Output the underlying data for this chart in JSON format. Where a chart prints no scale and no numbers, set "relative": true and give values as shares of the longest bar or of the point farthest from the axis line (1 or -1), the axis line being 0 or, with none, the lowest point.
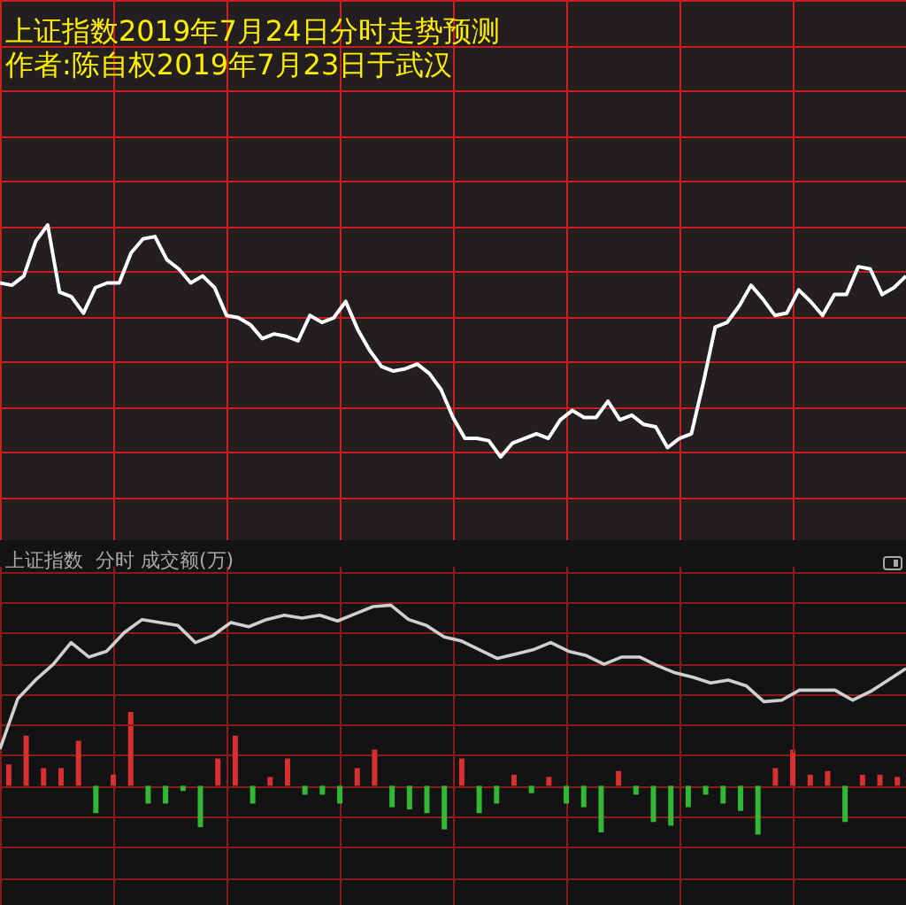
{
  "chart_data": [
    {
      "type": "line",
      "title": "上证指数2019年7月24日分时走势预测",
      "subtitle": "作者:陈自权2019年7月23日于武汉",
      "relative": true,
      "grid": true,
      "color": "#ffffff",
      "categories": [
        null,
        null,
        null,
        null,
        null,
        null,
        null,
        null,
        null,
        null,
        null,
        null,
        null,
        null,
        null,
        null,
        null,
        null,
        null,
        null,
        null,
        null,
        null,
        null,
        null,
        null,
        null,
        null,
        null,
        null,
        null,
        null,
        null,
        null,
        null,
        null,
        null,
        null,
        null,
        null,
        null,
        null,
        null,
        null,
        null,
        null,
        null,
        null,
        null,
        null,
        null,
        null,
        null,
        null,
        null,
        null,
        null,
        null,
        null,
        null,
        null,
        null,
        null,
        null,
        null,
        null,
        null,
        null,
        null,
        null,
        null,
        null,
        null,
        null,
        null,
        null,
        null
      ],
      "values": [
        0.75,
        0.74,
        0.78,
        0.93,
        1,
        0.71,
        0.69,
        0.62,
        0.73,
        0.75,
        0.75,
        0.88,
        0.94,
        0.95,
        0.85,
        0.81,
        0.75,
        0.78,
        0.73,
        0.61,
        0.6,
        0.57,
        0.51,
        0.53,
        0.52,
        0.5,
        0.61,
        0.58,
        0.6,
        0.67,
        0.55,
        0.46,
        0.39,
        0.37,
        0.38,
        0.4,
        0.36,
        0.29,
        0.17,
        0.08,
        0.08,
        0.07,
        0,
        0.06,
        0.08,
        0.1,
        0.08,
        0.16,
        0.2,
        0.17,
        0.17,
        0.24,
        0.16,
        0.18,
        0.14,
        0.13,
        0.04,
        0.08,
        0.1,
        0.32,
        0.56,
        0.58,
        0.65,
        0.74,
        0.68,
        0.61,
        0.62,
        0.72,
        0.67,
        0.61,
        0.7,
        0.7,
        0.82,
        0.81,
        0.7,
        0.73,
        0.78
      ]
    },
    {
      "type": "line",
      "title": "上证指数  分时 成交额(万)",
      "relative": true,
      "grid": true,
      "color": "#d0d0d0",
      "categories": [
        null,
        null,
        null,
        null,
        null,
        null,
        null,
        null,
        null,
        null,
        null,
        null,
        null,
        null,
        null,
        null,
        null,
        null,
        null,
        null,
        null,
        null,
        null,
        null,
        null,
        null,
        null,
        null,
        null,
        null,
        null,
        null,
        null,
        null,
        null,
        null,
        null,
        null,
        null,
        null,
        null,
        null,
        null,
        null,
        null,
        null,
        null,
        null,
        null,
        null,
        null,
        null
      ],
      "values": [
        0,
        0.35,
        0.48,
        0.59,
        0.74,
        0.64,
        0.68,
        0.81,
        0.9,
        0.88,
        0.86,
        0.74,
        0.79,
        0.88,
        0.85,
        0.9,
        0.93,
        0.91,
        0.93,
        0.89,
        0.94,
        0.99,
        1,
        0.9,
        0.86,
        0.78,
        0.75,
        0.69,
        0.63,
        0.66,
        0.69,
        0.74,
        0.68,
        0.65,
        0.59,
        0.64,
        0.64,
        0.58,
        0.53,
        0.5,
        0.46,
        0.48,
        0.44,
        0.33,
        0.34,
        0.41,
        0.41,
        0.41,
        0.34,
        0.4,
        0.48,
        0.56
      ]
    },
    {
      "type": "bar",
      "relative": true,
      "grid": true,
      "categories": [
        null,
        null,
        null,
        null,
        null,
        null,
        null,
        null,
        null,
        null,
        null,
        null,
        null,
        null,
        null,
        null,
        null,
        null,
        null,
        null,
        null,
        null,
        null,
        null,
        null,
        null,
        null,
        null,
        null,
        null,
        null,
        null,
        null,
        null,
        null,
        null,
        null,
        null,
        null,
        null,
        null,
        null,
        null,
        null,
        null,
        null,
        null,
        null,
        null,
        null,
        null,
        null
      ],
      "values": [
        0.29,
        0.68,
        0.24,
        0.24,
        0.61,
        -0.37,
        0.15,
        1,
        -0.24,
        -0.24,
        -0.07,
        -0.56,
        0.37,
        0.68,
        -0.24,
        0.12,
        0.37,
        -0.12,
        -0.12,
        -0.24,
        0.24,
        0.49,
        -0.29,
        -0.32,
        -0.37,
        -0.59,
        0.37,
        -0.37,
        -0.24,
        0.15,
        -0.1,
        0.12,
        -0.24,
        -0.29,
        -0.63,
        0.2,
        -0.12,
        -0.49,
        -0.54,
        -0.29,
        -0.12,
        -0.24,
        -0.34,
        -0.66,
        0.24,
        0.49,
        0.15,
        0.2,
        -0.49,
        0.15,
        0.15,
        0.12
      ],
      "colors": [
        "#d83030",
        "#d83030",
        "#d83030",
        "#d83030",
        "#d83030",
        "#33b833",
        "#d83030",
        "#d83030",
        "#33b833",
        "#33b833",
        "#33b833",
        "#33b833",
        "#d83030",
        "#d83030",
        "#33b833",
        "#d83030",
        "#d83030",
        "#33b833",
        "#33b833",
        "#33b833",
        "#d83030",
        "#d83030",
        "#33b833",
        "#33b833",
        "#33b833",
        "#33b833",
        "#d83030",
        "#33b833",
        "#33b833",
        "#d83030",
        "#33b833",
        "#d83030",
        "#33b833",
        "#33b833",
        "#33b833",
        "#d83030",
        "#33b833",
        "#33b833",
        "#33b833",
        "#33b833",
        "#33b833",
        "#33b833",
        "#33b833",
        "#33b833",
        "#d83030",
        "#d83030",
        "#d83030",
        "#d83030",
        "#33b833",
        "#d83030",
        "#d83030",
        "#d83030"
      ]
    }
  ]
}
